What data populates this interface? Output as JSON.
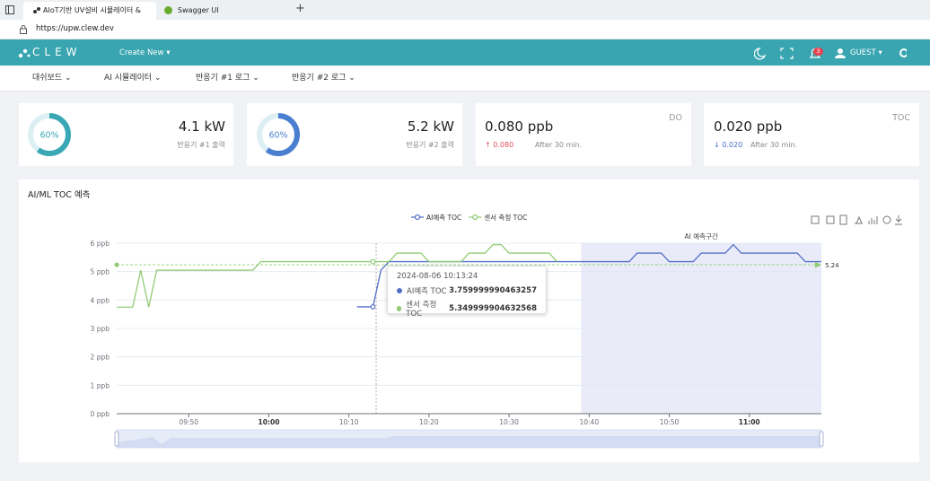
{
  "browser": {
    "tabs": [
      "AIoT기반 UV설비 시뮬레이터 &",
      "Swagger UI"
    ],
    "url": "https://upw.clew.dev"
  },
  "header": {
    "logo": "CLEW",
    "create_new": "Create New",
    "notification_count": 3,
    "user": "GUEST"
  },
  "nav": [
    "대쉬보드",
    "AI 시뮬레이터",
    "반응기 #1 로그",
    "반응기 #2 로그"
  ],
  "cards": [
    {
      "gauge": 60,
      "gauge_label": "60%",
      "color": "#3aa8b4",
      "value": "4.1 kW",
      "caption": "반응기 #1 출력"
    },
    {
      "gauge": 60,
      "gauge_label": "60%",
      "color": "#4a7fd0",
      "value": "5.2 kW",
      "caption": "반응기 #2 출력"
    },
    {
      "value": "0.080 ppb",
      "tag": "DO",
      "delta": "0.080",
      "direction": "up",
      "note": "After 30 min."
    },
    {
      "value": "0.020 ppb",
      "tag": "TOC",
      "delta": "0.020",
      "direction": "down",
      "note": "After 30 min."
    }
  ],
  "chart_data": {
    "type": "line",
    "title": "AI/ML TOC 예측",
    "legend": "top",
    "x": [
      "09:41",
      "09:42",
      "09:43",
      "09:44",
      "09:45",
      "09:46",
      "09:47",
      "09:48",
      "09:49",
      "09:50",
      "09:51",
      "09:52",
      "09:53",
      "09:54",
      "09:55",
      "09:56",
      "09:57",
      "09:58",
      "09:59",
      "10:00",
      "10:01",
      "10:02",
      "10:03",
      "10:04",
      "10:05",
      "10:06",
      "10:07",
      "10:08",
      "10:09",
      "10:10",
      "10:11",
      "10:12",
      "10:13",
      "10:14",
      "10:15",
      "10:16",
      "10:17",
      "10:18",
      "10:19",
      "10:20",
      "10:21",
      "10:22",
      "10:23",
      "10:24",
      "10:25",
      "10:26",
      "10:27",
      "10:28",
      "10:29",
      "10:30",
      "10:31",
      "10:32",
      "10:33",
      "10:34",
      "10:35",
      "10:36",
      "10:37",
      "10:38",
      "10:39",
      "10:40",
      "10:41",
      "10:42",
      "10:43",
      "10:44",
      "10:45",
      "10:46",
      "10:47",
      "10:48",
      "10:49",
      "10:50",
      "10:51",
      "10:52",
      "10:53",
      "10:54",
      "10:55",
      "10:56",
      "10:57",
      "10:58",
      "10:59",
      "11:00",
      "11:01",
      "11:02",
      "11:03",
      "11:04",
      "11:05",
      "11:06",
      "11:07",
      "11:08",
      "11:09"
    ],
    "series": [
      {
        "name": "AI예측 TOC",
        "color": "#5470c6",
        "values": [
          null,
          null,
          null,
          null,
          null,
          null,
          null,
          null,
          null,
          null,
          null,
          null,
          null,
          null,
          null,
          null,
          null,
          null,
          null,
          null,
          null,
          null,
          null,
          null,
          null,
          null,
          null,
          null,
          null,
          null,
          3.76,
          3.76,
          3.76,
          5.05,
          5.35,
          5.35,
          5.35,
          5.35,
          5.35,
          5.35,
          5.35,
          5.35,
          5.35,
          5.35,
          5.35,
          5.35,
          5.35,
          5.35,
          5.35,
          5.35,
          5.35,
          5.35,
          5.35,
          5.35,
          5.35,
          5.35,
          5.35,
          5.35,
          5.35,
          5.35,
          5.35,
          5.35,
          5.35,
          5.35,
          5.35,
          5.65,
          5.65,
          5.65,
          5.65,
          5.35,
          5.35,
          5.35,
          5.35,
          5.65,
          5.65,
          5.65,
          5.65,
          5.95,
          5.65,
          5.65,
          5.65,
          5.65,
          5.65,
          5.65,
          5.65,
          5.65,
          5.35,
          5.35,
          5.35
        ]
      },
      {
        "name": "센서 측정 TOC",
        "color": "#91cc75",
        "values": [
          3.75,
          3.75,
          3.75,
          5.05,
          3.75,
          5.05,
          5.05,
          5.05,
          5.05,
          5.05,
          5.05,
          5.05,
          5.05,
          5.05,
          5.05,
          5.05,
          5.05,
          5.05,
          5.35,
          5.35,
          5.35,
          5.35,
          5.35,
          5.35,
          5.35,
          5.35,
          5.35,
          5.35,
          5.35,
          5.35,
          5.35,
          5.35,
          5.35,
          5.35,
          5.35,
          5.65,
          5.65,
          5.65,
          5.65,
          5.35,
          5.35,
          5.35,
          5.35,
          5.35,
          5.65,
          5.65,
          5.65,
          5.95,
          5.95,
          5.65,
          5.65,
          5.65,
          5.65,
          5.65,
          5.65,
          5.35,
          null,
          null,
          null,
          null,
          null,
          null,
          null,
          null,
          null,
          null,
          null,
          null,
          null,
          null,
          null,
          null,
          null,
          null,
          null,
          null,
          null,
          null,
          null,
          null,
          null,
          null,
          null,
          null,
          null,
          null,
          null,
          null,
          null
        ]
      }
    ],
    "xlim": [
      "09:41",
      "11:09"
    ],
    "xticks": [
      "09:50",
      "10:00",
      "10:10",
      "10:20",
      "10:30",
      "10:40",
      "10:50",
      "11:00"
    ],
    "ylim": [
      0,
      6
    ],
    "yticks": [
      {
        "value": 0,
        "label": "0 ppb"
      },
      {
        "value": 1,
        "label": "1 ppb"
      },
      {
        "value": 2,
        "label": "2 ppb"
      },
      {
        "value": 3,
        "label": "3 ppb"
      },
      {
        "value": 4,
        "label": "4 ppb"
      },
      {
        "value": 5,
        "label": "5 ppb"
      },
      {
        "value": 6,
        "label": "6 ppb"
      }
    ],
    "grid": true,
    "mark_area": {
      "label": "AI 예측구간",
      "x": [
        "10:39",
        "11:09"
      ]
    },
    "mark_line": {
      "value": 5.24
    },
    "tooltip": {
      "title": "2024-08-06 10:13:24",
      "rows": [
        {
          "name": "AI예측 TOC",
          "value": 3.759999990463257
        },
        {
          "name": "센서 측정 TOC",
          "value": 5.349999904632568
        }
      ]
    }
  }
}
